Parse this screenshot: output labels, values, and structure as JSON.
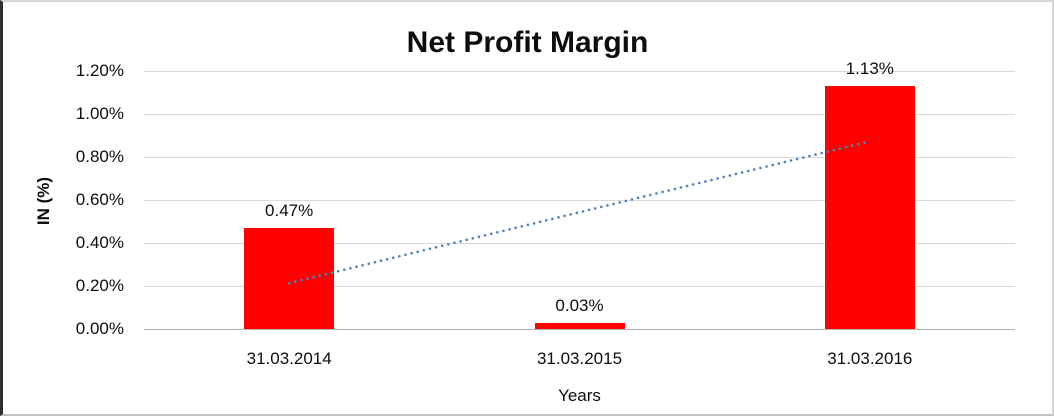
{
  "chart": {
    "title": "Net Profit Margin",
    "y_axis_title": "IN (%)",
    "x_axis_title": "Years"
  },
  "chart_data": {
    "type": "bar",
    "title": "Net Profit Margin",
    "xlabel": "Years",
    "ylabel": "IN (%)",
    "categories": [
      "31.03.2014",
      "31.03.2015",
      "31.03.2016"
    ],
    "values": [
      0.47,
      0.03,
      1.13
    ],
    "data_labels": [
      "0.47%",
      "0.03%",
      "1.13%"
    ],
    "y_ticks": [
      "0.00%",
      "0.20%",
      "0.40%",
      "0.60%",
      "0.80%",
      "1.00%",
      "1.20%"
    ],
    "y_tick_values": [
      0.0,
      0.2,
      0.4,
      0.6,
      0.8,
      1.0,
      1.2
    ],
    "ylim": [
      0,
      1.2
    ],
    "grid": true,
    "legend": false,
    "bar_color": "#ff0000",
    "label_color": "#0d0d0d",
    "gridline_color": "#d9d9d9",
    "trendline": {
      "type": "linear",
      "style": "dotted",
      "color": "#4f81bd",
      "start_value": 0.213,
      "end_value": 0.873
    }
  }
}
